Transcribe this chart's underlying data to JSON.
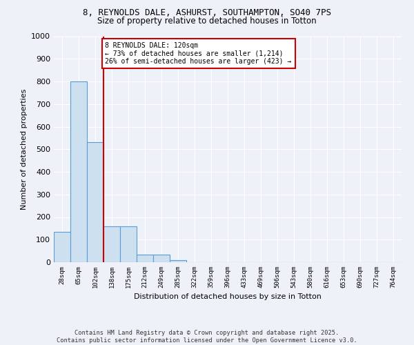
{
  "title1": "8, REYNOLDS DALE, ASHURST, SOUTHAMPTON, SO40 7PS",
  "title2": "Size of property relative to detached houses in Totton",
  "xlabel": "Distribution of detached houses by size in Totton",
  "ylabel": "Number of detached properties",
  "categories": [
    "28sqm",
    "65sqm",
    "102sqm",
    "138sqm",
    "175sqm",
    "212sqm",
    "249sqm",
    "285sqm",
    "322sqm",
    "359sqm",
    "396sqm",
    "433sqm",
    "469sqm",
    "506sqm",
    "543sqm",
    "580sqm",
    "616sqm",
    "653sqm",
    "690sqm",
    "727sqm",
    "764sqm"
  ],
  "values": [
    135,
    800,
    530,
    160,
    160,
    35,
    35,
    10,
    0,
    0,
    0,
    0,
    0,
    0,
    0,
    0,
    0,
    0,
    0,
    0,
    0
  ],
  "bar_color": "#cce0f0",
  "bar_edge_color": "#5b9bd5",
  "red_line_x": 2.5,
  "annotation_text": "8 REYNOLDS DALE: 120sqm\n← 73% of detached houses are smaller (1,214)\n26% of semi-detached houses are larger (423) →",
  "annotation_box_color": "#ffffff",
  "annotation_box_edge": "#cc0000",
  "annotation_text_color": "#000000",
  "footer": "Contains HM Land Registry data © Crown copyright and database right 2025.\nContains public sector information licensed under the Open Government Licence v3.0.",
  "background_color": "#eef2f8",
  "grid_color": "#ffffff",
  "ylim": [
    0,
    1000
  ],
  "yticks": [
    0,
    100,
    200,
    300,
    400,
    500,
    600,
    700,
    800,
    900,
    1000
  ]
}
